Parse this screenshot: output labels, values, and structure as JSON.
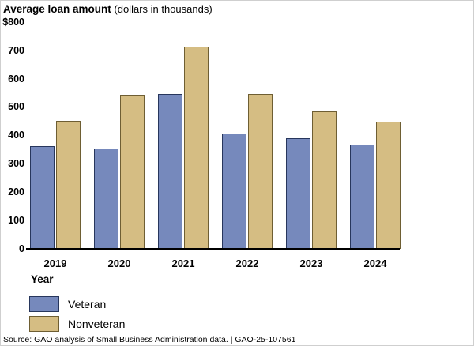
{
  "chart_data": {
    "type": "bar",
    "title": "Average loan amount",
    "title_qualifier": " (dollars in thousands)",
    "xlabel": "Year",
    "categories": [
      "2019",
      "2020",
      "2021",
      "2022",
      "2023",
      "2024"
    ],
    "series": [
      {
        "name": "Veteran",
        "color": "#7689BC",
        "border_color": "#27365C",
        "values": [
          363,
          356,
          547,
          407,
          392,
          368
        ]
      },
      {
        "name": "Nonveteran",
        "color": "#D5BD83",
        "border_color": "#6E5E33",
        "values": [
          451,
          544,
          716,
          547,
          486,
          450
        ]
      }
    ],
    "y_axis": {
      "min": 0,
      "max": 800,
      "tick_interval": 100,
      "tick_labels": [
        "$800",
        "700",
        "600",
        "500",
        "400",
        "300",
        "200",
        "100",
        "0"
      ]
    },
    "grid": false,
    "legend_position": "bottom-left"
  },
  "source_note": "Source: GAO analysis of Small Business Administration data.  |  GAO-25-107561"
}
